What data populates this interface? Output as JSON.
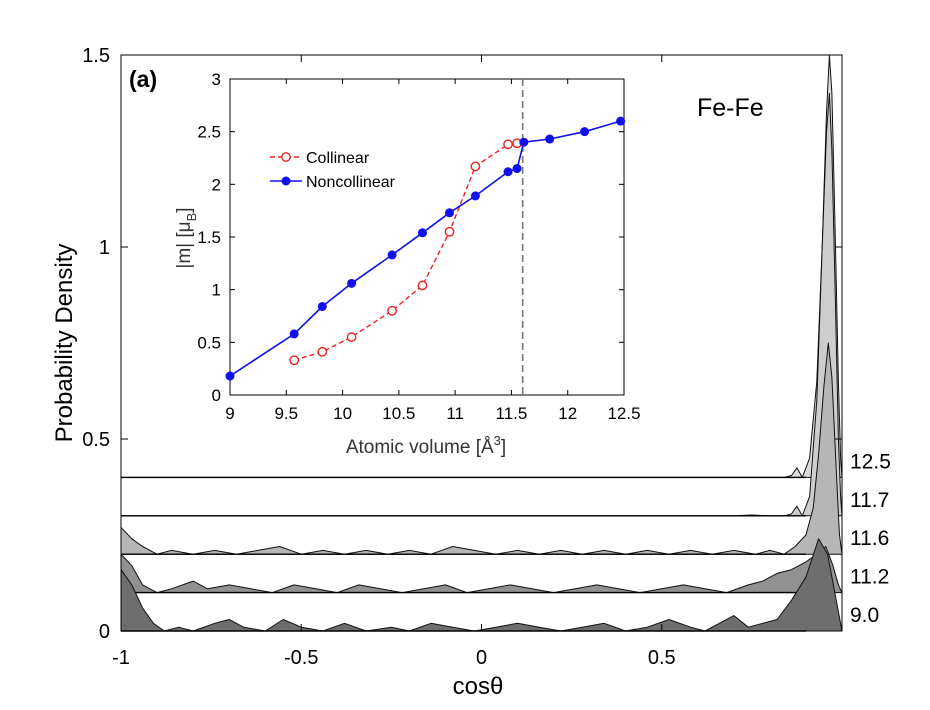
{
  "chart_data": [
    {
      "type": "area",
      "panel_label": "(a)",
      "pair_label": "Fe-Fe",
      "xlabel": "cosθ",
      "ylabel": "Probability Density",
      "xlim": [
        -1,
        1
      ],
      "ylim": [
        0,
        1.5
      ],
      "x_ticks": [
        -1,
        -0.5,
        0,
        0.5
      ],
      "x_tick_labels": [
        "-1",
        "-0.5",
        "0",
        "0.5"
      ],
      "y_ticks": [
        0,
        0.5,
        1,
        1.5
      ],
      "y_tick_labels": [
        "0",
        "0.5",
        "1",
        "1.5"
      ],
      "ridge_baseline_step": 0.1,
      "series": [
        {
          "name": "9.0",
          "color": "#6e6e6e",
          "points": [
            [
              -1.0,
              0.16
            ],
            [
              -0.97,
              0.12
            ],
            [
              -0.94,
              0.06
            ],
            [
              -0.91,
              0.02
            ],
            [
              -0.88,
              0.0
            ],
            [
              -0.84,
              0.01
            ],
            [
              -0.8,
              0.0
            ],
            [
              -0.74,
              0.02
            ],
            [
              -0.7,
              0.03
            ],
            [
              -0.66,
              0.01
            ],
            [
              -0.6,
              0.0
            ],
            [
              -0.55,
              0.03
            ],
            [
              -0.5,
              0.01
            ],
            [
              -0.44,
              0.0
            ],
            [
              -0.38,
              0.02
            ],
            [
              -0.32,
              0.0
            ],
            [
              -0.25,
              0.01
            ],
            [
              -0.2,
              0.0
            ],
            [
              -0.14,
              0.02
            ],
            [
              -0.08,
              0.01
            ],
            [
              -0.02,
              0.0
            ],
            [
              0.04,
              0.01
            ],
            [
              0.1,
              0.02
            ],
            [
              0.16,
              0.01
            ],
            [
              0.22,
              0.0
            ],
            [
              0.28,
              0.01
            ],
            [
              0.34,
              0.02
            ],
            [
              0.4,
              0.0
            ],
            [
              0.46,
              0.01
            ],
            [
              0.52,
              0.03
            ],
            [
              0.58,
              0.01
            ],
            [
              0.62,
              0.0
            ],
            [
              0.66,
              0.02
            ],
            [
              0.7,
              0.04
            ],
            [
              0.74,
              0.01
            ],
            [
              0.78,
              0.02
            ],
            [
              0.82,
              0.03
            ],
            [
              0.86,
              0.08
            ],
            [
              0.9,
              0.14
            ],
            [
              0.935,
              0.24
            ],
            [
              0.96,
              0.2
            ],
            [
              0.98,
              0.1
            ],
            [
              1.0,
              0.0
            ]
          ]
        },
        {
          "name": "11.2",
          "color": "#919191",
          "points": [
            [
              -1.0,
              0.1
            ],
            [
              -0.97,
              0.07
            ],
            [
              -0.94,
              0.02
            ],
            [
              -0.9,
              0.0
            ],
            [
              -0.86,
              0.01
            ],
            [
              -0.8,
              0.03
            ],
            [
              -0.76,
              0.01
            ],
            [
              -0.7,
              0.02
            ],
            [
              -0.64,
              0.01
            ],
            [
              -0.58,
              0.0
            ],
            [
              -0.52,
              0.02
            ],
            [
              -0.46,
              0.01
            ],
            [
              -0.4,
              0.0
            ],
            [
              -0.34,
              0.02
            ],
            [
              -0.28,
              0.01
            ],
            [
              -0.22,
              0.0
            ],
            [
              -0.16,
              0.01
            ],
            [
              -0.1,
              0.02
            ],
            [
              -0.04,
              0.0
            ],
            [
              0.02,
              0.01
            ],
            [
              0.08,
              0.02
            ],
            [
              0.14,
              0.01
            ],
            [
              0.2,
              0.0
            ],
            [
              0.26,
              0.01
            ],
            [
              0.32,
              0.02
            ],
            [
              0.38,
              0.01
            ],
            [
              0.44,
              0.0
            ],
            [
              0.5,
              0.01
            ],
            [
              0.56,
              0.02
            ],
            [
              0.62,
              0.01
            ],
            [
              0.68,
              0.0
            ],
            [
              0.74,
              0.02
            ],
            [
              0.78,
              0.03
            ],
            [
              0.82,
              0.05
            ],
            [
              0.86,
              0.06
            ],
            [
              0.9,
              0.08
            ],
            [
              0.93,
              0.1
            ],
            [
              0.955,
              0.12
            ],
            [
              0.975,
              0.07
            ],
            [
              0.99,
              0.02
            ],
            [
              1.0,
              0.0
            ]
          ]
        },
        {
          "name": "11.6",
          "color": "#b6b6b6",
          "points": [
            [
              -1.0,
              0.07
            ],
            [
              -0.97,
              0.04
            ],
            [
              -0.94,
              0.02
            ],
            [
              -0.9,
              0.0
            ],
            [
              -0.86,
              0.01
            ],
            [
              -0.8,
              0.0
            ],
            [
              -0.74,
              0.01
            ],
            [
              -0.68,
              0.0
            ],
            [
              -0.62,
              0.01
            ],
            [
              -0.56,
              0.02
            ],
            [
              -0.5,
              0.0
            ],
            [
              -0.44,
              0.01
            ],
            [
              -0.38,
              0.0
            ],
            [
              -0.32,
              0.01
            ],
            [
              -0.26,
              0.0
            ],
            [
              -0.2,
              0.01
            ],
            [
              -0.14,
              0.0
            ],
            [
              -0.08,
              0.02
            ],
            [
              -0.02,
              0.01
            ],
            [
              0.04,
              0.0
            ],
            [
              0.1,
              0.01
            ],
            [
              0.16,
              0.0
            ],
            [
              0.22,
              0.01
            ],
            [
              0.28,
              0.0
            ],
            [
              0.34,
              0.01
            ],
            [
              0.4,
              0.0
            ],
            [
              0.46,
              0.01
            ],
            [
              0.52,
              0.0
            ],
            [
              0.58,
              0.01
            ],
            [
              0.64,
              0.0
            ],
            [
              0.7,
              0.01
            ],
            [
              0.76,
              0.0
            ],
            [
              0.8,
              0.01
            ],
            [
              0.84,
              0.0
            ],
            [
              0.87,
              0.02
            ],
            [
              0.9,
              0.05
            ],
            [
              0.92,
              0.12
            ],
            [
              0.935,
              0.26
            ],
            [
              0.95,
              0.44
            ],
            [
              0.962,
              0.55
            ],
            [
              0.972,
              0.46
            ],
            [
              0.985,
              0.2
            ],
            [
              0.993,
              0.05
            ],
            [
              1.0,
              0.0
            ]
          ]
        },
        {
          "name": "11.7",
          "color": "#cdcdcd",
          "points": [
            [
              -1.0,
              0.0
            ],
            [
              -0.8,
              0.0
            ],
            [
              -0.6,
              0.0
            ],
            [
              -0.4,
              0.0
            ],
            [
              -0.2,
              0.0
            ],
            [
              0.0,
              0.0
            ],
            [
              0.2,
              0.0
            ],
            [
              0.4,
              0.0
            ],
            [
              0.6,
              0.0
            ],
            [
              0.7,
              0.0
            ],
            [
              0.75,
              0.002
            ],
            [
              0.8,
              0.0
            ],
            [
              0.84,
              0.0
            ],
            [
              0.86,
              0.005
            ],
            [
              0.875,
              0.025
            ],
            [
              0.89,
              0.0
            ],
            [
              0.91,
              0.05
            ],
            [
              0.93,
              0.3
            ],
            [
              0.945,
              0.7
            ],
            [
              0.957,
              1.0
            ],
            [
              0.965,
              1.1
            ],
            [
              0.972,
              0.95
            ],
            [
              0.982,
              0.55
            ],
            [
              0.99,
              0.2
            ],
            [
              0.996,
              0.05
            ],
            [
              1.0,
              0.0
            ]
          ]
        },
        {
          "name": "12.5",
          "color": "#dcdcdc",
          "points": [
            [
              -1.0,
              0.0
            ],
            [
              -0.8,
              0.0
            ],
            [
              -0.6,
              0.0
            ],
            [
              -0.4,
              0.0
            ],
            [
              -0.2,
              0.0
            ],
            [
              0.0,
              0.0
            ],
            [
              0.2,
              0.0
            ],
            [
              0.4,
              0.0
            ],
            [
              0.6,
              0.0
            ],
            [
              0.7,
              0.0
            ],
            [
              0.8,
              0.0
            ],
            [
              0.84,
              0.0
            ],
            [
              0.86,
              0.005
            ],
            [
              0.875,
              0.025
            ],
            [
              0.89,
              0.0
            ],
            [
              0.91,
              0.05
            ],
            [
              0.93,
              0.25
            ],
            [
              0.945,
              0.6
            ],
            [
              0.957,
              0.95
            ],
            [
              0.965,
              1.1
            ],
            [
              0.972,
              1.0
            ],
            [
              0.982,
              0.6
            ],
            [
              0.99,
              0.25
            ],
            [
              0.996,
              0.05
            ],
            [
              1.0,
              0.0
            ]
          ]
        }
      ]
    },
    {
      "type": "line",
      "xlabel": "Atomic volume [Å",
      "xlabel_sup": "3",
      "xlabel_end": "]",
      "ylabel": "|m| [μ",
      "ylabel_sub": "B",
      "ylabel_end": "]",
      "xlim": [
        9,
        12.5
      ],
      "ylim": [
        0,
        3
      ],
      "x_ticks": [
        9,
        9.5,
        10,
        10.5,
        11,
        11.5,
        12,
        12.5
      ],
      "x_tick_labels": [
        "9",
        "9.5",
        "10",
        "10.5",
        "11",
        "11.5",
        "12",
        "12.5"
      ],
      "y_ticks": [
        0,
        0.5,
        1,
        1.5,
        2,
        2.5,
        3
      ],
      "y_tick_labels": [
        "0",
        "0.5",
        "1",
        "1.5",
        "2",
        "2.5",
        "3"
      ],
      "vline_x": 11.6,
      "series": [
        {
          "name": "Collinear",
          "color": "#ee2222",
          "style": "dashed",
          "marker": "open-circle",
          "x": [
            9.57,
            9.82,
            10.08,
            10.44,
            10.71,
            10.95,
            11.18,
            11.47,
            11.55
          ],
          "y": [
            0.33,
            0.41,
            0.55,
            0.8,
            1.04,
            1.55,
            2.17,
            2.38,
            2.39
          ]
        },
        {
          "name": "Noncollinear",
          "color": "#1010ee",
          "style": "solid",
          "marker": "filled-circle",
          "x": [
            9.0,
            9.57,
            9.82,
            10.08,
            10.44,
            10.71,
            10.95,
            11.18,
            11.47,
            11.55,
            11.61,
            11.84,
            12.15,
            12.47
          ],
          "y": [
            0.18,
            0.58,
            0.84,
            1.06,
            1.33,
            1.54,
            1.73,
            1.89,
            2.12,
            2.15,
            2.4,
            2.43,
            2.5,
            2.6
          ]
        }
      ]
    }
  ]
}
